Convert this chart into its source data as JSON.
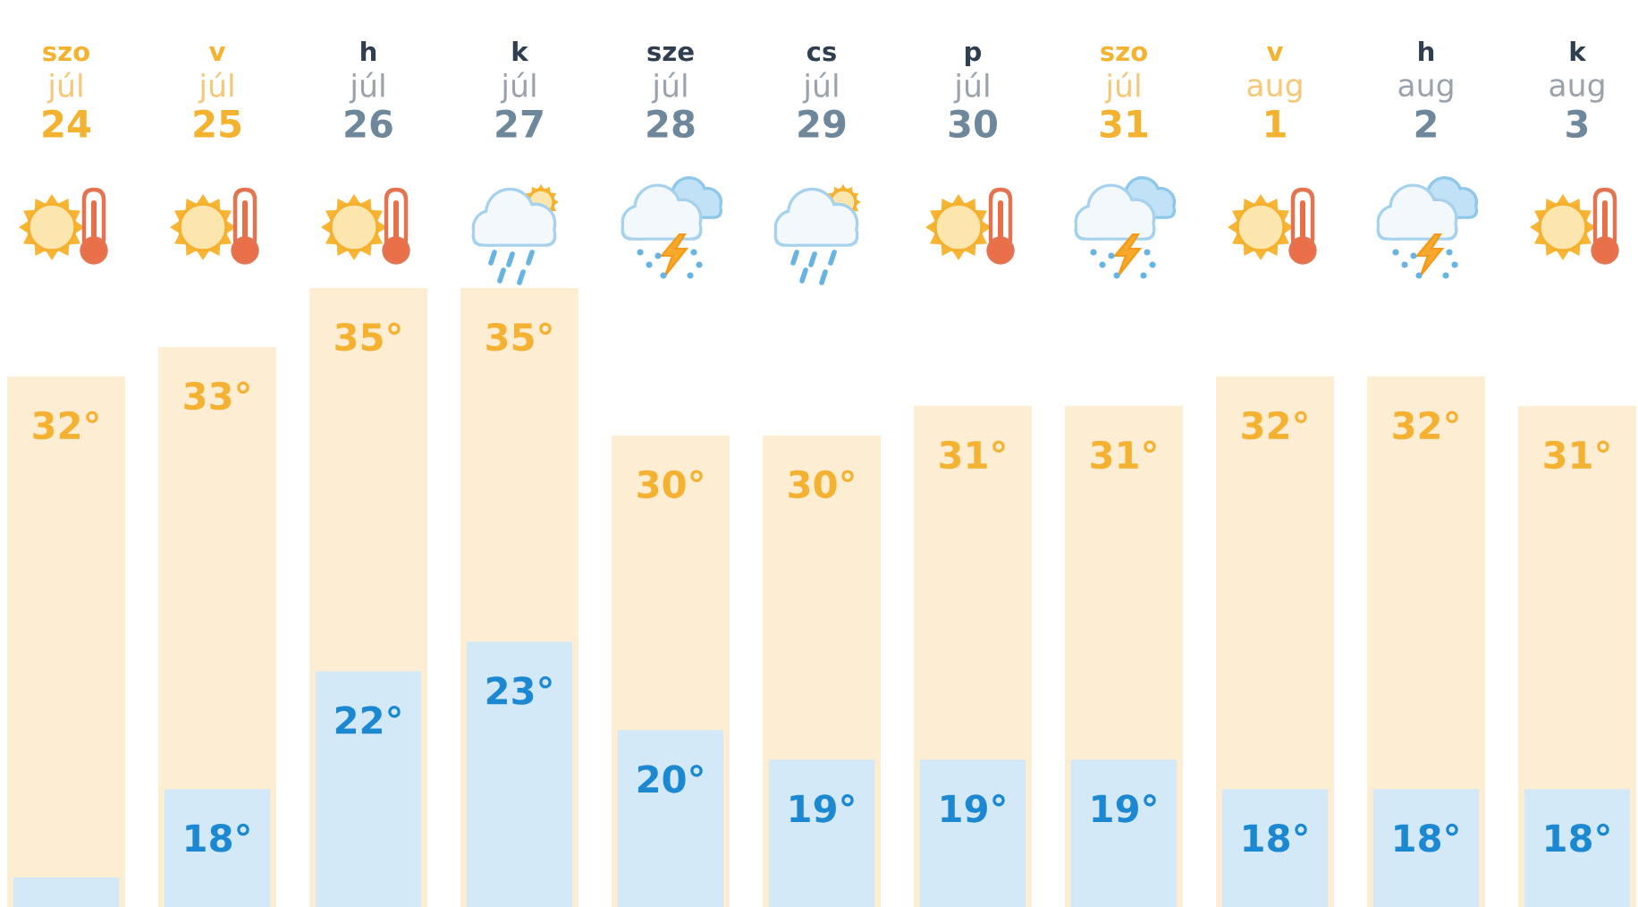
{
  "chart_data": {
    "type": "bar",
    "categories": [
      "szo\njúl\n24",
      "v\njúl\n25",
      "h\njúl\n26",
      "k\njúl\n27",
      "sze\njúl\n28",
      "cs\njúl\n29",
      "p\njúl\n30",
      "szo\njúl\n31",
      "v\naug\n1",
      "h\naug\n2",
      "k\naug\n3"
    ],
    "series": [
      {
        "color": "#fdedd2",
        "values": [
          32,
          33,
          35,
          35,
          30,
          30,
          31,
          31,
          32,
          32,
          31
        ],
        "value_labels": [
          "32°",
          "33°",
          "35°",
          "35°",
          "30°",
          "30°",
          "31°",
          "31°",
          "32°",
          "32°",
          "31°"
        ]
      },
      {
        "color": "#d3e9f7",
        "values": [
          15,
          18,
          22,
          23,
          20,
          19,
          19,
          19,
          18,
          18,
          18
        ],
        "value_labels": [
          null,
          "18°",
          "22°",
          "23°",
          "20°",
          "19°",
          "19°",
          "19°",
          "18°",
          "18°",
          "18°"
        ]
      }
    ],
    "ylim": [
      14,
      35
    ],
    "tick_labels": "x"
  }
}
